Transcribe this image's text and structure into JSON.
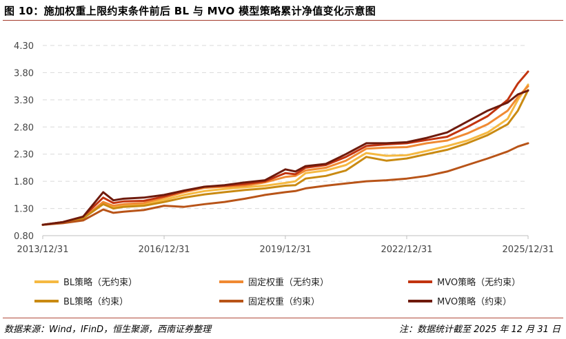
{
  "title": "图 10：施加权重上限约束条件前后 BL 与 MVO 模型策略累计净值变化示意图",
  "footer": {
    "source": "数据来源：Wind，IFinD，恒生聚源，西南证券整理",
    "note": "注：数据统计截至 2025 年 12 月 31 日"
  },
  "chart_data": {
    "type": "line",
    "title": "",
    "xlabel": "",
    "ylabel": "",
    "ylim": [
      0.8,
      4.3
    ],
    "yticks": [
      "4.30",
      "3.80",
      "3.30",
      "2.80",
      "2.30",
      "1.80",
      "1.30",
      "0.80"
    ],
    "xlim": [
      "2013/12/31",
      "2025/12/31"
    ],
    "xticks": [
      "2013/12/31",
      "2016/12/31",
      "2019/12/31",
      "2022/12/31",
      "2025/12/31"
    ],
    "grid": "horizontal dashed",
    "legend_position": "bottom",
    "series": [
      {
        "name": "BL策略（无约束）",
        "color": "#f5b942",
        "width": 3,
        "points": [
          [
            "2013/12/31",
            1.0
          ],
          [
            "2014/06/30",
            1.04
          ],
          [
            "2014/12/31",
            1.12
          ],
          [
            "2015/06/30",
            1.4
          ],
          [
            "2015/09/30",
            1.33
          ],
          [
            "2015/12/31",
            1.36
          ],
          [
            "2016/06/30",
            1.38
          ],
          [
            "2016/12/31",
            1.46
          ],
          [
            "2017/06/30",
            1.55
          ],
          [
            "2017/12/31",
            1.62
          ],
          [
            "2018/06/30",
            1.66
          ],
          [
            "2018/12/31",
            1.69
          ],
          [
            "2019/06/30",
            1.72
          ],
          [
            "2019/12/31",
            1.77
          ],
          [
            "2020/03/31",
            1.8
          ],
          [
            "2020/06/30",
            1.95
          ],
          [
            "2020/12/31",
            2.0
          ],
          [
            "2021/06/30",
            2.1
          ],
          [
            "2021/12/31",
            2.32
          ],
          [
            "2022/06/30",
            2.27
          ],
          [
            "2022/12/31",
            2.28
          ],
          [
            "2023/06/30",
            2.36
          ],
          [
            "2023/12/31",
            2.45
          ],
          [
            "2024/06/30",
            2.55
          ],
          [
            "2024/12/31",
            2.7
          ],
          [
            "2025/06/30",
            2.95
          ],
          [
            "2025/09/30",
            3.3
          ],
          [
            "2025/12/31",
            3.58
          ]
        ]
      },
      {
        "name": "固定权重（无约束）",
        "color": "#f08a33",
        "width": 3,
        "points": [
          [
            "2013/12/31",
            1.0
          ],
          [
            "2014/06/30",
            1.05
          ],
          [
            "2014/12/31",
            1.12
          ],
          [
            "2015/06/30",
            1.42
          ],
          [
            "2015/09/30",
            1.35
          ],
          [
            "2015/12/31",
            1.38
          ],
          [
            "2016/06/30",
            1.4
          ],
          [
            "2016/12/31",
            1.5
          ],
          [
            "2017/06/30",
            1.6
          ],
          [
            "2017/12/31",
            1.68
          ],
          [
            "2018/06/30",
            1.7
          ],
          [
            "2018/12/31",
            1.72
          ],
          [
            "2019/06/30",
            1.78
          ],
          [
            "2019/12/31",
            1.88
          ],
          [
            "2020/03/31",
            1.9
          ],
          [
            "2020/06/30",
            2.0
          ],
          [
            "2020/12/31",
            2.05
          ],
          [
            "2021/06/30",
            2.18
          ],
          [
            "2021/12/31",
            2.4
          ],
          [
            "2022/06/30",
            2.42
          ],
          [
            "2022/12/31",
            2.43
          ],
          [
            "2023/06/30",
            2.5
          ],
          [
            "2023/12/31",
            2.55
          ],
          [
            "2024/06/30",
            2.68
          ],
          [
            "2024/12/31",
            2.85
          ],
          [
            "2025/06/30",
            3.1
          ],
          [
            "2025/09/30",
            3.35
          ],
          [
            "2025/12/31",
            3.55
          ]
        ]
      },
      {
        "name": "MVO策略（无约束）",
        "color": "#c2340f",
        "width": 3,
        "points": [
          [
            "2013/12/31",
            1.0
          ],
          [
            "2014/06/30",
            1.05
          ],
          [
            "2014/12/31",
            1.15
          ],
          [
            "2015/06/30",
            1.5
          ],
          [
            "2015/09/30",
            1.4
          ],
          [
            "2015/12/31",
            1.43
          ],
          [
            "2016/06/30",
            1.44
          ],
          [
            "2016/12/31",
            1.52
          ],
          [
            "2017/06/30",
            1.62
          ],
          [
            "2017/12/31",
            1.7
          ],
          [
            "2018/06/30",
            1.72
          ],
          [
            "2018/12/31",
            1.75
          ],
          [
            "2019/06/30",
            1.8
          ],
          [
            "2019/12/31",
            1.95
          ],
          [
            "2020/03/31",
            1.93
          ],
          [
            "2020/06/30",
            2.05
          ],
          [
            "2020/12/31",
            2.1
          ],
          [
            "2021/06/30",
            2.25
          ],
          [
            "2021/12/31",
            2.45
          ],
          [
            "2022/06/30",
            2.48
          ],
          [
            "2022/12/31",
            2.5
          ],
          [
            "2023/06/30",
            2.56
          ],
          [
            "2023/12/31",
            2.62
          ],
          [
            "2024/06/30",
            2.8
          ],
          [
            "2024/12/31",
            3.0
          ],
          [
            "2025/06/30",
            3.3
          ],
          [
            "2025/09/30",
            3.6
          ],
          [
            "2025/12/31",
            3.82
          ]
        ]
      },
      {
        "name": "BL策略（约束）",
        "color": "#c98a12",
        "width": 3,
        "points": [
          [
            "2013/12/31",
            1.0
          ],
          [
            "2014/06/30",
            1.04
          ],
          [
            "2014/12/31",
            1.12
          ],
          [
            "2015/06/30",
            1.38
          ],
          [
            "2015/09/30",
            1.3
          ],
          [
            "2015/12/31",
            1.33
          ],
          [
            "2016/06/30",
            1.35
          ],
          [
            "2016/12/31",
            1.42
          ],
          [
            "2017/06/30",
            1.5
          ],
          [
            "2017/12/31",
            1.56
          ],
          [
            "2018/06/30",
            1.6
          ],
          [
            "2018/12/31",
            1.64
          ],
          [
            "2019/06/30",
            1.67
          ],
          [
            "2019/12/31",
            1.72
          ],
          [
            "2020/03/31",
            1.73
          ],
          [
            "2020/06/30",
            1.85
          ],
          [
            "2020/12/31",
            1.9
          ],
          [
            "2021/06/30",
            2.0
          ],
          [
            "2021/12/31",
            2.25
          ],
          [
            "2022/06/30",
            2.18
          ],
          [
            "2022/12/31",
            2.22
          ],
          [
            "2023/06/30",
            2.3
          ],
          [
            "2023/12/31",
            2.38
          ],
          [
            "2024/06/30",
            2.5
          ],
          [
            "2024/12/31",
            2.65
          ],
          [
            "2025/06/30",
            2.85
          ],
          [
            "2025/09/30",
            3.1
          ],
          [
            "2025/12/31",
            3.48
          ]
        ]
      },
      {
        "name": "固定权重（约束）",
        "color": "#b85418",
        "width": 3,
        "points": [
          [
            "2013/12/31",
            1.0
          ],
          [
            "2014/06/30",
            1.03
          ],
          [
            "2014/12/31",
            1.08
          ],
          [
            "2015/06/30",
            1.28
          ],
          [
            "2015/09/30",
            1.22
          ],
          [
            "2015/12/31",
            1.24
          ],
          [
            "2016/06/30",
            1.27
          ],
          [
            "2016/12/31",
            1.35
          ],
          [
            "2017/06/30",
            1.33
          ],
          [
            "2017/12/31",
            1.38
          ],
          [
            "2018/06/30",
            1.42
          ],
          [
            "2018/12/31",
            1.48
          ],
          [
            "2019/06/30",
            1.55
          ],
          [
            "2019/12/31",
            1.6
          ],
          [
            "2020/03/31",
            1.62
          ],
          [
            "2020/06/30",
            1.67
          ],
          [
            "2020/12/31",
            1.72
          ],
          [
            "2021/06/30",
            1.76
          ],
          [
            "2021/12/31",
            1.8
          ],
          [
            "2022/06/30",
            1.82
          ],
          [
            "2022/12/31",
            1.85
          ],
          [
            "2023/06/30",
            1.9
          ],
          [
            "2023/12/31",
            1.98
          ],
          [
            "2024/06/30",
            2.1
          ],
          [
            "2024/12/31",
            2.22
          ],
          [
            "2025/06/30",
            2.35
          ],
          [
            "2025/09/30",
            2.44
          ],
          [
            "2025/12/31",
            2.5
          ]
        ]
      },
      {
        "name": "MVO策略（约束）",
        "color": "#6e1a0c",
        "width": 3,
        "points": [
          [
            "2013/12/31",
            1.0
          ],
          [
            "2014/06/30",
            1.05
          ],
          [
            "2014/12/31",
            1.15
          ],
          [
            "2015/06/30",
            1.6
          ],
          [
            "2015/09/30",
            1.45
          ],
          [
            "2015/12/31",
            1.48
          ],
          [
            "2016/06/30",
            1.5
          ],
          [
            "2016/12/31",
            1.55
          ],
          [
            "2017/06/30",
            1.63
          ],
          [
            "2017/12/31",
            1.7
          ],
          [
            "2018/06/30",
            1.73
          ],
          [
            "2018/12/31",
            1.78
          ],
          [
            "2019/06/30",
            1.82
          ],
          [
            "2019/12/31",
            2.02
          ],
          [
            "2020/03/31",
            1.98
          ],
          [
            "2020/06/30",
            2.08
          ],
          [
            "2020/12/31",
            2.12
          ],
          [
            "2021/06/30",
            2.3
          ],
          [
            "2021/12/31",
            2.5
          ],
          [
            "2022/06/30",
            2.5
          ],
          [
            "2022/12/31",
            2.52
          ],
          [
            "2023/06/30",
            2.6
          ],
          [
            "2023/12/31",
            2.7
          ],
          [
            "2024/06/30",
            2.9
          ],
          [
            "2024/12/31",
            3.1
          ],
          [
            "2025/06/30",
            3.25
          ],
          [
            "2025/09/30",
            3.4
          ],
          [
            "2025/12/31",
            3.47
          ]
        ]
      }
    ]
  }
}
